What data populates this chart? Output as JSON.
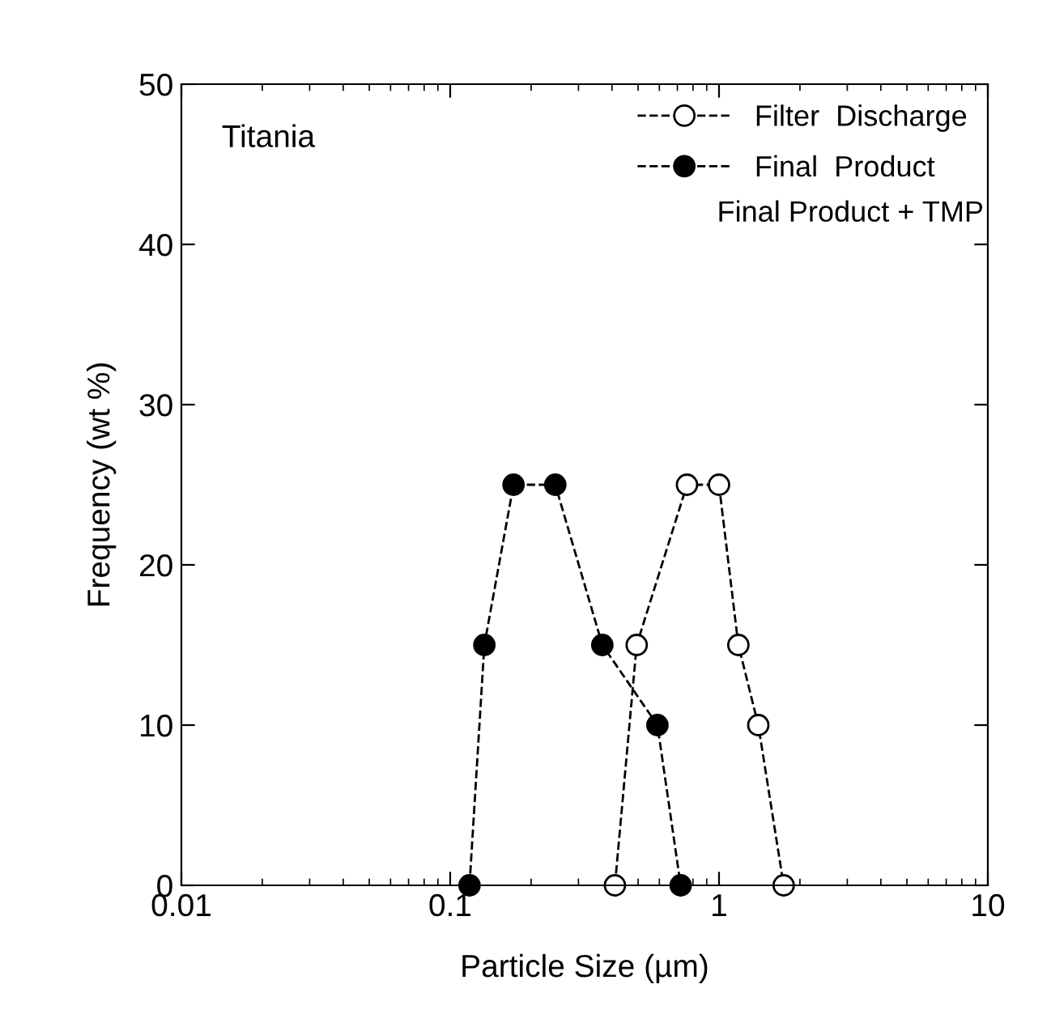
{
  "chart_data": {
    "type": "line",
    "xlabel": "Particle Size (µm)",
    "ylabel": "Frequency (wt %)",
    "log": "x",
    "xlim": [
      0.01,
      10
    ],
    "xticks": [
      0.01,
      0.1,
      1,
      10
    ],
    "ylim": [
      0,
      50
    ],
    "yticks": [
      0,
      10,
      20,
      30,
      40,
      50
    ],
    "marker": "circle",
    "line_style": "dashed",
    "grid": false,
    "legend": "top right",
    "series": [
      {
        "name": "Filter  Discharge",
        "color": "#ffffff",
        "x": [
          0.41,
          0.494,
          0.76,
          1.0,
          1.18,
          1.4,
          1.74
        ],
        "values": [
          0,
          15,
          25,
          25,
          15,
          10,
          0
        ]
      },
      {
        "name": "Final  Product",
        "color": "#000000",
        "x": [
          0.118,
          0.134,
          0.172,
          0.246,
          0.368,
          0.59,
          0.72
        ],
        "values": [
          0,
          15,
          25,
          25,
          15,
          10,
          0
        ]
      }
    ],
    "annotations": [
      "Titania",
      "Final Product + TMP"
    ]
  }
}
